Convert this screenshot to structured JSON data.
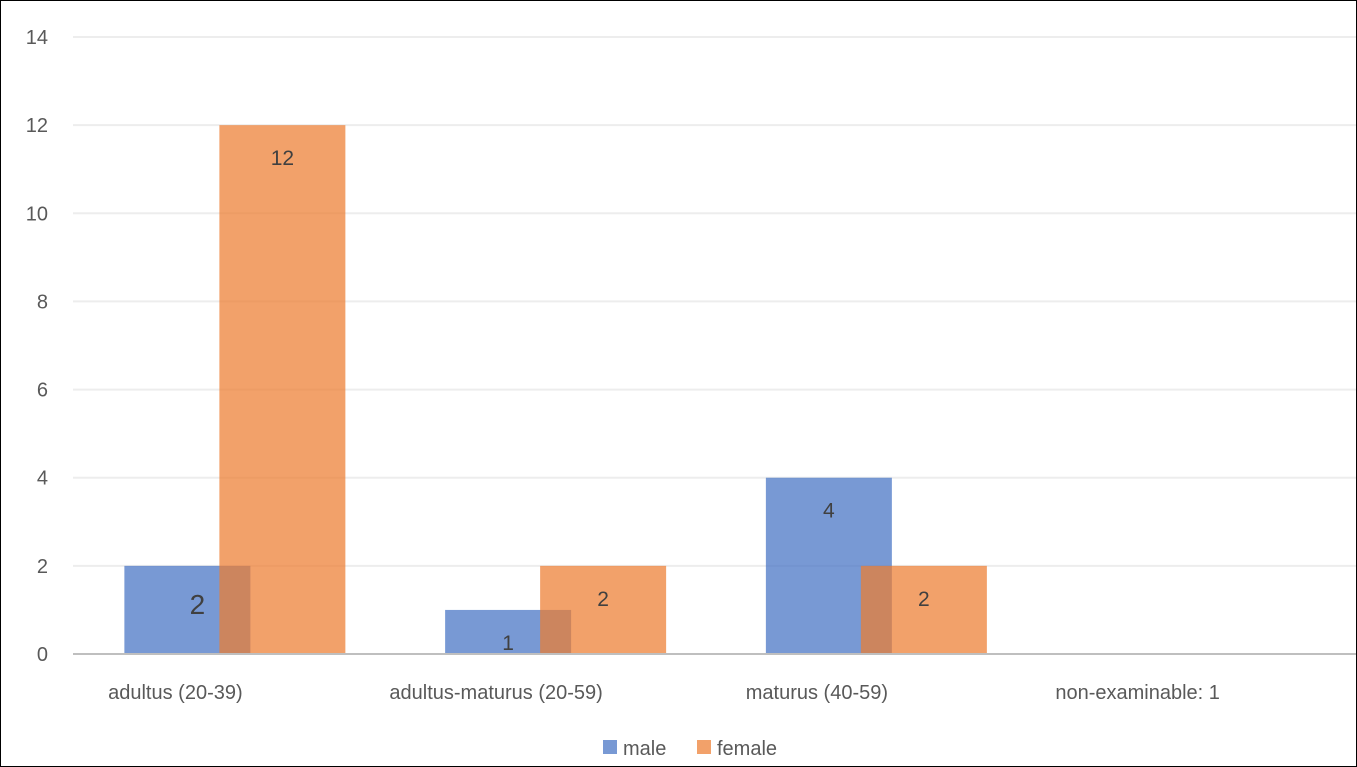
{
  "chart_data": {
    "type": "bar",
    "title": "",
    "xlabel": "",
    "ylabel": "",
    "categories": [
      "adultus (20-39)",
      "adultus-maturus (20-59)",
      "maturus (40-59)",
      "non-examinable: 1"
    ],
    "series": [
      {
        "name": "male",
        "values": [
          2,
          1,
          4,
          0
        ],
        "color": "#4472C4",
        "data_labels": [
          "2",
          "1",
          "4",
          ""
        ]
      },
      {
        "name": "female",
        "values": [
          12,
          2,
          2,
          0
        ],
        "color": "#ED7D31",
        "data_labels": [
          "12",
          "2",
          "2",
          ""
        ]
      }
    ],
    "ylim": [
      0,
      14
    ],
    "yticks": [
      0,
      2,
      4,
      6,
      8,
      10,
      12,
      14
    ],
    "grid": true,
    "legend": "bottom",
    "overlapping_bars": true
  }
}
